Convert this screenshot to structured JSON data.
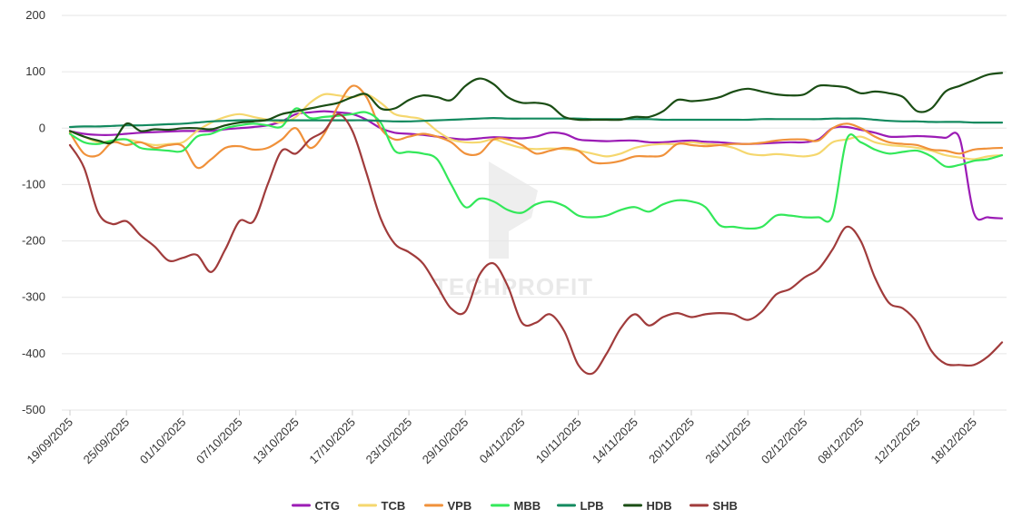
{
  "watermark": {
    "text": "TECHPROFIT"
  },
  "chart_data": {
    "type": "line",
    "title": "",
    "xlabel": "",
    "ylabel": "",
    "ylim": [
      -500,
      200
    ],
    "y_ticks": [
      200,
      100,
      0,
      -100,
      -200,
      -300,
      -400,
      -500
    ],
    "grid": true,
    "legend_position": "bottom",
    "x_tick_labels": [
      "19/09/2025",
      "25/09/2025",
      "01/10/2025",
      "07/10/2025",
      "13/10/2025",
      "17/10/2025",
      "23/10/2025",
      "29/10/2025",
      "04/11/2025",
      "10/11/2025",
      "14/11/2025",
      "20/11/2025",
      "26/11/2025",
      "02/12/2025",
      "08/12/2025",
      "12/12/2025",
      "18/12/2025"
    ],
    "x_tick_index": [
      0,
      4,
      8,
      12,
      16,
      20,
      24,
      28,
      32,
      36,
      40,
      44,
      48,
      52,
      56,
      60,
      64
    ],
    "n_points": 67,
    "series": [
      {
        "name": "CTG",
        "color": "#9b1bb5",
        "values": [
          -5,
          -10,
          -12,
          -12,
          -10,
          -8,
          -7,
          -6,
          -5,
          -5,
          -5,
          -2,
          0,
          2,
          5,
          12,
          25,
          28,
          30,
          28,
          25,
          15,
          0,
          -8,
          -10,
          -12,
          -15,
          -18,
          -20,
          -18,
          -16,
          -17,
          -18,
          -15,
          -8,
          -10,
          -20,
          -22,
          -23,
          -22,
          -22,
          -25,
          -25,
          -23,
          -22,
          -24,
          -25,
          -27,
          -28,
          -27,
          -26,
          -25,
          -25,
          -20,
          0,
          2,
          -3,
          -8,
          -15,
          -15,
          -14,
          -15,
          -17,
          -18,
          -150,
          -158,
          -160
        ]
      },
      {
        "name": "TCB",
        "color": "#f5d76e",
        "values": [
          -5,
          -15,
          -25,
          -22,
          -20,
          -25,
          -30,
          -28,
          -25,
          -5,
          10,
          20,
          25,
          20,
          15,
          10,
          20,
          45,
          60,
          58,
          55,
          60,
          45,
          25,
          20,
          15,
          -5,
          -20,
          -25,
          -25,
          -20,
          -28,
          -35,
          -37,
          -36,
          -37,
          -40,
          -45,
          -50,
          -45,
          -35,
          -30,
          -28,
          -28,
          -25,
          -28,
          -30,
          -35,
          -45,
          -48,
          -46,
          -48,
          -50,
          -45,
          -25,
          -20,
          -15,
          -25,
          -30,
          -32,
          -35,
          -40,
          -48,
          -52,
          -55,
          -50,
          -48
        ]
      },
      {
        "name": "VPB",
        "color": "#f0913a",
        "values": [
          -8,
          -45,
          -48,
          -25,
          -30,
          -25,
          -35,
          -30,
          -32,
          -70,
          -55,
          -35,
          -32,
          -38,
          -35,
          -20,
          0,
          -35,
          -10,
          40,
          75,
          55,
          0,
          -20,
          -15,
          -10,
          -15,
          -25,
          -45,
          -45,
          -20,
          -20,
          -30,
          -45,
          -40,
          -35,
          -40,
          -60,
          -62,
          -58,
          -50,
          -50,
          -48,
          -28,
          -30,
          -32,
          -30,
          -28,
          -28,
          -26,
          -22,
          -20,
          -20,
          -22,
          0,
          8,
          0,
          -15,
          -25,
          -28,
          -30,
          -38,
          -40,
          -45,
          -38,
          -36,
          -35
        ]
      },
      {
        "name": "MBB",
        "color": "#33e85a",
        "values": [
          -10,
          -25,
          -28,
          -22,
          -20,
          -35,
          -38,
          -40,
          -40,
          -15,
          -10,
          0,
          5,
          8,
          5,
          3,
          35,
          18,
          20,
          22,
          25,
          28,
          10,
          -40,
          -42,
          -45,
          -55,
          -100,
          -140,
          -125,
          -130,
          -145,
          -150,
          -135,
          -130,
          -138,
          -155,
          -158,
          -155,
          -145,
          -140,
          -148,
          -135,
          -128,
          -130,
          -140,
          -172,
          -175,
          -178,
          -175,
          -155,
          -155,
          -158,
          -158,
          -155,
          -20,
          -25,
          -38,
          -45,
          -42,
          -40,
          -50,
          -68,
          -65,
          -58,
          -55,
          -48
        ]
      },
      {
        "name": "LPB",
        "color": "#138a5f",
        "values": [
          2,
          3,
          3,
          4,
          5,
          5,
          6,
          7,
          8,
          10,
          12,
          13,
          14,
          14,
          14,
          14,
          14,
          14,
          14,
          14,
          14,
          14,
          13,
          12,
          12,
          13,
          14,
          15,
          16,
          17,
          18,
          17,
          17,
          17,
          17,
          17,
          17,
          16,
          16,
          16,
          16,
          16,
          15,
          15,
          15,
          15,
          15,
          15,
          15,
          16,
          16,
          16,
          16,
          16,
          17,
          17,
          17,
          15,
          13,
          12,
          12,
          11,
          11,
          11,
          10,
          10,
          10
        ]
      },
      {
        "name": "HDB",
        "color": "#1a4d14",
        "values": [
          -5,
          -15,
          -22,
          -25,
          8,
          -5,
          -2,
          -3,
          0,
          0,
          -2,
          5,
          10,
          12,
          15,
          25,
          30,
          35,
          40,
          45,
          55,
          60,
          35,
          35,
          50,
          58,
          55,
          50,
          75,
          88,
          78,
          55,
          45,
          45,
          40,
          20,
          15,
          15,
          15,
          15,
          20,
          20,
          30,
          50,
          48,
          50,
          55,
          65,
          70,
          65,
          60,
          58,
          60,
          75,
          75,
          72,
          62,
          65,
          62,
          55,
          30,
          35,
          65,
          75,
          85,
          95,
          98
        ]
      },
      {
        "name": "SHB",
        "color": "#a03b3b",
        "values": [
          -30,
          -70,
          -150,
          -170,
          -165,
          -190,
          -210,
          -235,
          -230,
          -225,
          -255,
          -215,
          -165,
          -165,
          -100,
          -40,
          -45,
          -20,
          -5,
          25,
          -5,
          -80,
          -160,
          -205,
          -220,
          -240,
          -280,
          -320,
          -325,
          -260,
          -240,
          -280,
          -345,
          -345,
          -330,
          -360,
          -420,
          -435,
          -400,
          -355,
          -330,
          -350,
          -335,
          -328,
          -335,
          -330,
          -328,
          -330,
          -340,
          -325,
          -295,
          -285,
          -265,
          -250,
          -215,
          -175,
          -200,
          -265,
          -310,
          -320,
          -345,
          -395,
          -418,
          -420,
          -420,
          -405,
          -380
        ]
      }
    ]
  }
}
